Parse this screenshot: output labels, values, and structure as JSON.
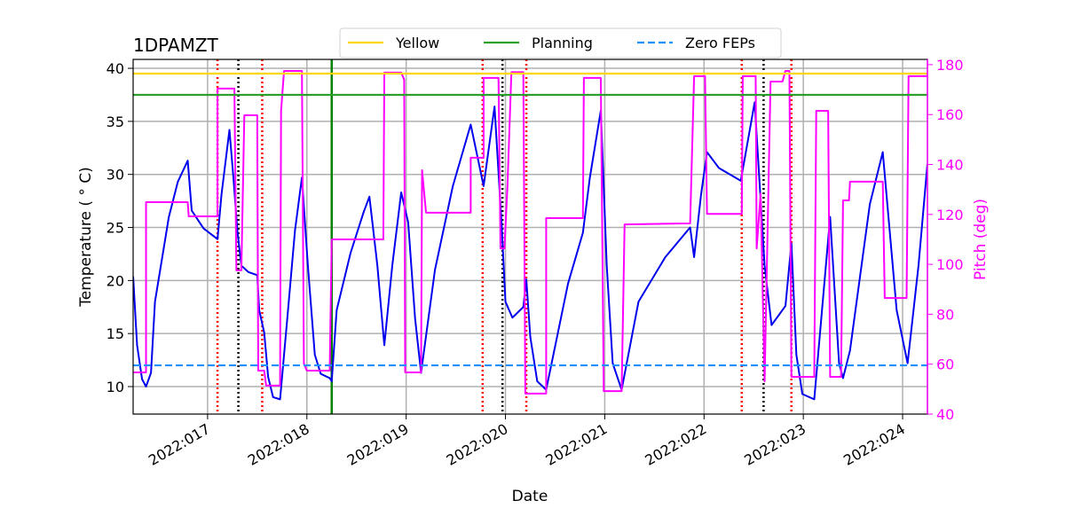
{
  "chart_data": {
    "type": "line",
    "title": "1DPAMZT",
    "xlabel": "Date",
    "ylabel": "Temperature ( ° C)",
    "y2label": "Pitch (deg)",
    "xlim": [
      16.25,
      24.25
    ],
    "ylim": [
      7.41,
      40.84
    ],
    "y2lim": [
      40,
      182.1
    ],
    "xticks": [
      {
        "value": 17,
        "label": "2022:017"
      },
      {
        "value": 18,
        "label": "2022:018"
      },
      {
        "value": 19,
        "label": "2022:019"
      },
      {
        "value": 20,
        "label": "2022:020"
      },
      {
        "value": 21,
        "label": "2022:021"
      },
      {
        "value": 22,
        "label": "2022:022"
      },
      {
        "value": 23,
        "label": "2022:023"
      },
      {
        "value": 24,
        "label": "2022:024"
      }
    ],
    "yticks": [
      10,
      15,
      20,
      25,
      30,
      35,
      40
    ],
    "y2ticks": [
      40,
      60,
      80,
      100,
      120,
      140,
      160,
      180
    ],
    "grid": true,
    "y2color": "#ff00ff",
    "series": [
      {
        "color": "#0000ee",
        "x": [
          16.25,
          16.29,
          16.34,
          16.38,
          16.43,
          16.47,
          16.61,
          16.7,
          16.8,
          16.84,
          16.96,
          17.1,
          17.14,
          17.22,
          17.26,
          17.3,
          17.34,
          17.41,
          17.5,
          17.52,
          17.57,
          17.61,
          17.66,
          17.73,
          17.81,
          17.88,
          17.95,
          18.01,
          18.08,
          18.14,
          18.23,
          18.25,
          18.3,
          18.44,
          18.57,
          18.63,
          18.71,
          18.78,
          18.86,
          18.95,
          19.02,
          19.09,
          19.15,
          19.29,
          19.47,
          19.65,
          19.78,
          19.89,
          19.96,
          20.0,
          20.07,
          20.18,
          20.21,
          20.25,
          20.32,
          20.41,
          20.63,
          20.78,
          20.85,
          20.96,
          21.02,
          21.08,
          21.17,
          21.34,
          21.61,
          21.86,
          21.9,
          21.97,
          22.03,
          22.15,
          22.37,
          22.51,
          22.61,
          22.68,
          22.82,
          22.88,
          22.93,
          22.99,
          23.11,
          23.27,
          23.36,
          23.4,
          23.47,
          23.67,
          23.8,
          23.94,
          24.05,
          24.16,
          24.25
        ],
        "values": [
          20.4,
          13.9,
          10.7,
          10.0,
          11.3,
          18.0,
          26.0,
          29.3,
          31.3,
          26.6,
          24.9,
          23.9,
          28.1,
          34.2,
          29.7,
          24.7,
          21.4,
          20.8,
          20.5,
          17.2,
          15.1,
          10.9,
          9.0,
          8.8,
          17.2,
          24.7,
          29.7,
          21.4,
          13.0,
          11.2,
          10.8,
          10.5,
          17.2,
          22.6,
          26.4,
          27.9,
          21.4,
          13.9,
          21.4,
          28.3,
          25.5,
          16.4,
          11.3,
          21.0,
          28.9,
          34.7,
          28.9,
          36.4,
          25.5,
          18.0,
          16.5,
          17.5,
          20.1,
          14.7,
          10.5,
          9.7,
          19.7,
          24.5,
          29.7,
          36.0,
          21.4,
          12.2,
          9.7,
          18.0,
          22.2,
          25.0,
          22.2,
          28.1,
          32.1,
          30.6,
          29.4,
          36.8,
          21.4,
          15.8,
          17.6,
          23.5,
          13.0,
          9.3,
          8.8,
          26.0,
          12.2,
          10.8,
          13.4,
          27.2,
          32.1,
          17.2,
          12.2,
          21.4,
          31.0
        ]
      },
      {
        "color": "#ff00ff",
        "axis": "y2",
        "x": [
          16.25,
          16.38,
          16.38,
          16.8,
          16.81,
          17.1,
          17.1,
          17.27,
          17.29,
          17.34,
          17.37,
          17.5,
          17.51,
          17.57,
          17.59,
          17.73,
          17.74,
          17.77,
          17.95,
          17.97,
          18.0,
          18.23,
          18.25,
          18.77,
          18.78,
          18.95,
          18.98,
          18.99,
          19.15,
          19.16,
          19.2,
          19.65,
          19.65,
          19.78,
          19.78,
          19.93,
          19.95,
          19.99,
          20.02,
          20.06,
          20.18,
          20.2,
          20.41,
          20.41,
          20.78,
          20.79,
          20.96,
          20.99,
          21.17,
          21.2,
          21.86,
          21.9,
          22.01,
          22.03,
          22.38,
          22.39,
          22.52,
          22.53,
          22.57,
          22.61,
          22.67,
          22.79,
          22.82,
          22.86,
          22.88,
          23.11,
          23.13,
          23.25,
          23.27,
          23.38,
          23.4,
          23.46,
          23.47,
          23.8,
          23.82,
          24.04,
          24.06,
          24.25
        ],
        "values": [
          56.7,
          56.7,
          124.9,
          124.9,
          119.2,
          119.2,
          170.4,
          170.4,
          97.6,
          97.6,
          159.7,
          159.7,
          57.4,
          57.4,
          51.4,
          51.4,
          161.5,
          177.5,
          177.5,
          60.2,
          57.4,
          57.4,
          110.0,
          110.0,
          176.8,
          176.8,
          174.0,
          56.7,
          56.7,
          137.7,
          120.7,
          120.7,
          142.7,
          142.7,
          174.7,
          174.7,
          106.4,
          106.4,
          131.3,
          177.0,
          177.0,
          48.2,
          48.2,
          118.5,
          118.5,
          174.7,
          174.7,
          49.2,
          49.2,
          116.0,
          116.4,
          175.4,
          175.4,
          120.2,
          120.2,
          175.4,
          175.4,
          106.4,
          128.4,
          53.1,
          173.2,
          173.2,
          177.5,
          177.5,
          54.9,
          54.9,
          161.5,
          161.5,
          54.9,
          54.9,
          125.6,
          125.6,
          133.1,
          133.1,
          86.5,
          86.5,
          175.4,
          175.4
        ]
      }
    ],
    "hlines": [
      {
        "name": "Yellow",
        "value": 39.5,
        "color": "#ffd700",
        "style": "solid"
      },
      {
        "name": "Planning",
        "value": 37.5,
        "color": "#2ca02c",
        "style": "solid"
      },
      {
        "name": "Zero FEPs",
        "value": 12,
        "color": "#1f8fff",
        "style": "dashed"
      }
    ],
    "vlines": [
      {
        "x": 17.1,
        "color": "#ff0000",
        "style": "dotted"
      },
      {
        "x": 17.55,
        "color": "#ff0000",
        "style": "dotted"
      },
      {
        "x": 19.77,
        "color": "#ff0000",
        "style": "dotted"
      },
      {
        "x": 20.21,
        "color": "#ff0000",
        "style": "dotted"
      },
      {
        "x": 22.38,
        "color": "#ff0000",
        "style": "dotted"
      },
      {
        "x": 22.88,
        "color": "#ff0000",
        "style": "dotted"
      },
      {
        "x": 17.31,
        "color": "#000000",
        "style": "dotted"
      },
      {
        "x": 19.97,
        "color": "#000000",
        "style": "dotted"
      },
      {
        "x": 22.6,
        "color": "#000000",
        "style": "dotted"
      },
      {
        "x": 18.25,
        "color": "#008000",
        "style": "solid"
      }
    ]
  }
}
